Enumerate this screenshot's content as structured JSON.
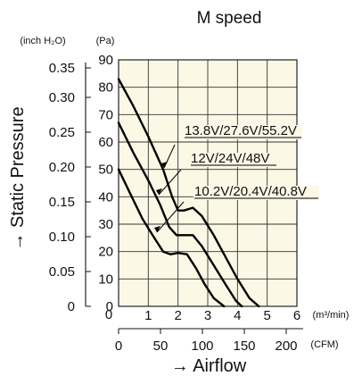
{
  "chart_data": {
    "type": "line",
    "title": "M speed",
    "x_axis": {
      "label": "→ Airflow",
      "primary_unit": "(m³/min)",
      "primary_ticks": [
        "1",
        "2",
        "3",
        "4",
        "5",
        "6"
      ],
      "primary_zero_label": "0",
      "secondary_unit": "(CFM)",
      "secondary_ticks": [
        "0",
        "50",
        "100",
        "150",
        "200"
      ],
      "range_m3min": [
        0,
        6
      ]
    },
    "y_axis": {
      "label": "→ Static Pressure",
      "pa_unit": "(Pa)",
      "pa_ticks": [
        "0",
        "10",
        "20",
        "30",
        "40",
        "50",
        "60",
        "70",
        "80",
        "90"
      ],
      "inch_unit": "(inch H₂O)",
      "inch_ticks": [
        "0",
        "0.05",
        "0.10",
        "0.15",
        "0.20",
        "0.25",
        "0.30",
        "0.35"
      ],
      "range_pa": [
        0,
        90
      ]
    },
    "grid": true,
    "background": "#fbf8e6",
    "series": [
      {
        "name": "13.8V/27.6V/55.2V",
        "x": [
          0,
          0.5,
          1.0,
          1.5,
          1.8,
          2.0,
          2.2,
          2.5,
          2.8,
          3.2,
          3.6,
          4.0,
          4.4,
          4.72
        ],
        "y": [
          83,
          73,
          62,
          50,
          40,
          35,
          35,
          36,
          33,
          26,
          18,
          10,
          3,
          0
        ]
      },
      {
        "name": "12V/24V/48V",
        "x": [
          0,
          0.5,
          1.0,
          1.4,
          1.7,
          1.95,
          2.2,
          2.5,
          2.8,
          3.2,
          3.6,
          3.95,
          4.15
        ],
        "y": [
          67,
          56,
          46,
          37,
          29,
          26,
          26,
          26,
          22,
          15,
          8,
          2,
          0
        ]
      },
      {
        "name": "10.2V/20.4V/40.8V",
        "x": [
          0,
          0.4,
          0.8,
          1.2,
          1.5,
          1.75,
          2.0,
          2.3,
          2.6,
          2.9,
          3.2,
          3.55
        ],
        "y": [
          50,
          41,
          32,
          25,
          20,
          19,
          19.5,
          19,
          14,
          8,
          3,
          0
        ]
      }
    ]
  }
}
